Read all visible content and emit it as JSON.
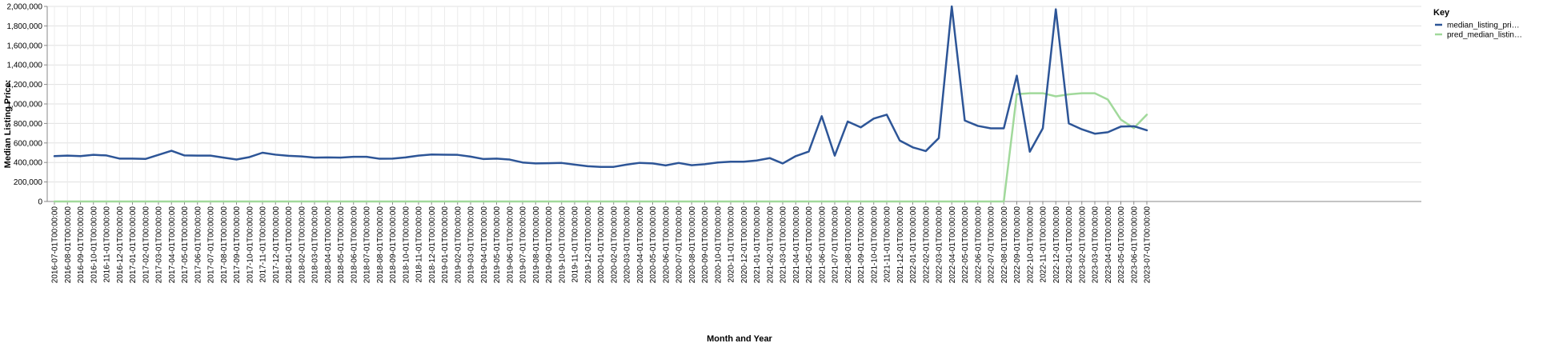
{
  "chart_data": {
    "type": "line",
    "xlabel": "Month and Year",
    "ylabel": "Median Listing Price:",
    "ylim": [
      0,
      2000000
    ],
    "yticks": [
      "0",
      "200,000",
      "400,000",
      "600,000",
      "800,000",
      "1,000,000",
      "1,200,000",
      "1,400,000",
      "1,600,000",
      "1,800,000",
      "2,000,000"
    ],
    "grid": true,
    "legend": {
      "title": "Key",
      "placement": "right"
    },
    "x": [
      "2016-07-01T00:00:00",
      "2016-08-01T00:00:00",
      "2016-09-01T00:00:00",
      "2016-10-01T00:00:00",
      "2016-11-01T00:00:00",
      "2016-12-01T00:00:00",
      "2017-01-01T00:00:00",
      "2017-02-01T00:00:00",
      "2017-03-01T00:00:00",
      "2017-04-01T00:00:00",
      "2017-05-01T00:00:00",
      "2017-06-01T00:00:00",
      "2017-07-01T00:00:00",
      "2017-08-01T00:00:00",
      "2017-09-01T00:00:00",
      "2017-10-01T00:00:00",
      "2017-11-01T00:00:00",
      "2017-12-01T00:00:00",
      "2018-01-01T00:00:00",
      "2018-02-01T00:00:00",
      "2018-03-01T00:00:00",
      "2018-04-01T00:00:00",
      "2018-05-01T00:00:00",
      "2018-06-01T00:00:00",
      "2018-07-01T00:00:00",
      "2018-08-01T00:00:00",
      "2018-09-01T00:00:00",
      "2018-10-01T00:00:00",
      "2018-11-01T00:00:00",
      "2018-12-01T00:00:00",
      "2019-01-01T00:00:00",
      "2019-02-01T00:00:00",
      "2019-03-01T00:00:00",
      "2019-04-01T00:00:00",
      "2019-05-01T00:00:00",
      "2019-06-01T00:00:00",
      "2019-07-01T00:00:00",
      "2019-08-01T00:00:00",
      "2019-09-01T00:00:00",
      "2019-10-01T00:00:00",
      "2019-11-01T00:00:00",
      "2019-12-01T00:00:00",
      "2020-01-01T00:00:00",
      "2020-02-01T00:00:00",
      "2020-03-01T00:00:00",
      "2020-04-01T00:00:00",
      "2020-05-01T00:00:00",
      "2020-06-01T00:00:00",
      "2020-07-01T00:00:00",
      "2020-08-01T00:00:00",
      "2020-09-01T00:00:00",
      "2020-10-01T00:00:00",
      "2020-11-01T00:00:00",
      "2020-12-01T00:00:00",
      "2021-01-01T00:00:00",
      "2021-02-01T00:00:00",
      "2021-03-01T00:00:00",
      "2021-04-01T00:00:00",
      "2021-05-01T00:00:00",
      "2021-06-01T00:00:00",
      "2021-07-01T00:00:00",
      "2021-08-01T00:00:00",
      "2021-09-01T00:00:00",
      "2021-10-01T00:00:00",
      "2021-11-01T00:00:00",
      "2021-12-01T00:00:00",
      "2022-01-01T00:00:00",
      "2022-02-01T00:00:00",
      "2022-03-01T00:00:00",
      "2022-04-01T00:00:00",
      "2022-05-01T00:00:00",
      "2022-06-01T00:00:00",
      "2022-07-01T00:00:00",
      "2022-08-01T00:00:00",
      "2022-09-01T00:00:00",
      "2022-10-01T00:00:00",
      "2022-11-01T00:00:00",
      "2022-12-01T00:00:00",
      "2023-01-01T00:00:00",
      "2023-02-01T00:00:00",
      "2023-03-01T00:00:00",
      "2023-04-01T00:00:00",
      "2023-05-01T00:00:00",
      "2023-06-01T00:00:00",
      "2023-07-01T00:00:00"
    ],
    "series": [
      {
        "name": "median_listing_pri…",
        "color": "#2d5597",
        "values": [
          465000,
          470000,
          465000,
          478000,
          472000,
          440000,
          440000,
          436000,
          478000,
          520000,
          472000,
          470000,
          470000,
          450000,
          430000,
          455000,
          500000,
          480000,
          468000,
          462000,
          450000,
          452000,
          450000,
          458000,
          458000,
          438000,
          440000,
          452000,
          470000,
          482000,
          480000,
          478000,
          460000,
          435000,
          440000,
          430000,
          400000,
          390000,
          392000,
          395000,
          378000,
          362000,
          355000,
          355000,
          378000,
          396000,
          390000,
          370000,
          395000,
          372000,
          382000,
          400000,
          408000,
          408000,
          420000,
          445000,
          390000,
          465000,
          512000,
          875000,
          470000,
          820000,
          760000,
          850000,
          890000,
          625000,
          555000,
          517000,
          650000,
          2000000,
          830000,
          775000,
          750000,
          750000,
          1290000,
          510000,
          750000,
          1970000,
          800000,
          740000,
          695000,
          710000,
          768000,
          772000,
          730000
        ]
      },
      {
        "name": "pred_median_listin…",
        "color": "#a1d99b",
        "values": [
          0,
          0,
          0,
          0,
          0,
          0,
          0,
          0,
          0,
          0,
          0,
          0,
          0,
          0,
          0,
          0,
          0,
          0,
          0,
          0,
          0,
          0,
          0,
          0,
          0,
          0,
          0,
          0,
          0,
          0,
          0,
          0,
          0,
          0,
          0,
          0,
          0,
          0,
          0,
          0,
          0,
          0,
          0,
          0,
          0,
          0,
          0,
          0,
          0,
          0,
          0,
          0,
          0,
          0,
          0,
          0,
          0,
          0,
          0,
          0,
          0,
          0,
          0,
          0,
          0,
          0,
          0,
          0,
          0,
          0,
          0,
          0,
          0,
          0,
          1100000,
          1110000,
          1110000,
          1078000,
          1098000,
          1110000,
          1110000,
          1045000,
          840000,
          752000,
          890000
        ]
      }
    ]
  }
}
